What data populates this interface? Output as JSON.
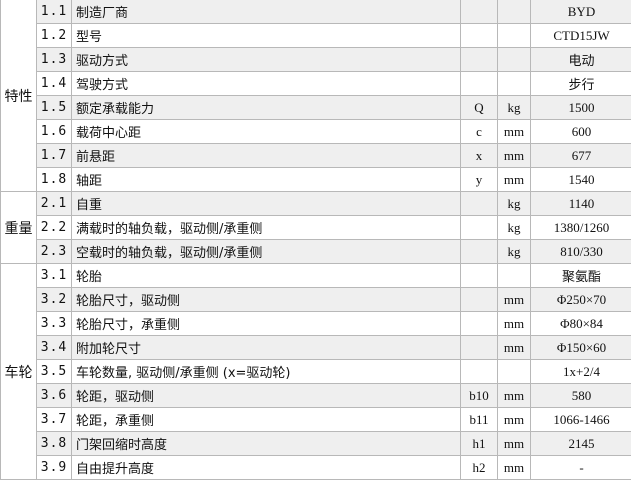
{
  "groups": [
    {
      "label": "特性",
      "rows": [
        {
          "num": "1.1",
          "name": "制造厂商",
          "sym": "",
          "unit": "",
          "val": "BYD"
        },
        {
          "num": "1.2",
          "name": "型号",
          "sym": "",
          "unit": "",
          "val": "CTD15JW"
        },
        {
          "num": "1.3",
          "name": "驱动方式",
          "sym": "",
          "unit": "",
          "val": "电动"
        },
        {
          "num": "1.4",
          "name": "驾驶方式",
          "sym": "",
          "unit": "",
          "val": "步行"
        },
        {
          "num": "1.5",
          "name": "额定承载能力",
          "sym": "Q",
          "unit": "kg",
          "val": "1500"
        },
        {
          "num": "1.6",
          "name": "载荷中心距",
          "sym": "c",
          "unit": "mm",
          "val": "600"
        },
        {
          "num": "1.7",
          "name": "前悬距",
          "sym": "x",
          "unit": "mm",
          "val": "677"
        },
        {
          "num": "1.8",
          "name": "轴距",
          "sym": "y",
          "unit": "mm",
          "val": "1540"
        }
      ]
    },
    {
      "label": "重量",
      "rows": [
        {
          "num": "2.1",
          "name": "自重",
          "sym": "",
          "unit": "kg",
          "val": "1140"
        },
        {
          "num": "2.2",
          "name": "满载时的轴负载，驱动侧/承重侧",
          "sym": "",
          "unit": "kg",
          "val": "1380/1260"
        },
        {
          "num": "2.3",
          "name": "空载时的轴负载，驱动侧/承重侧",
          "sym": "",
          "unit": "kg",
          "val": "810/330"
        }
      ]
    },
    {
      "label": "车轮",
      "rows": [
        {
          "num": "3.1",
          "name": "轮胎",
          "sym": "",
          "unit": "",
          "val": "聚氨酯"
        },
        {
          "num": "3.2",
          "name": "轮胎尺寸，驱动侧",
          "sym": "",
          "unit": "mm",
          "val": "Φ250×70"
        },
        {
          "num": "3.3",
          "name": "轮胎尺寸，承重侧",
          "sym": "",
          "unit": "mm",
          "val": "Φ80×84"
        },
        {
          "num": "3.4",
          "name": "附加轮尺寸",
          "sym": "",
          "unit": "mm",
          "val": "Φ150×60"
        },
        {
          "num": "3.5",
          "name": "车轮数量, 驱动侧/承重侧 (x=驱动轮)",
          "sym": "",
          "unit": "",
          "val": "1x+2/4"
        },
        {
          "num": "3.6",
          "name": "轮距，驱动侧",
          "sym": "b10",
          "unit": "mm",
          "val": "580"
        },
        {
          "num": "3.7",
          "name": "轮距，承重侧",
          "sym": "b11",
          "unit": "mm",
          "val": "1066-1466"
        },
        {
          "num": "3.8",
          "name": "门架回缩时高度",
          "sym": "h1",
          "unit": "mm",
          "val": "2145"
        },
        {
          "num": "3.9",
          "name": "自由提升高度",
          "sym": "h2",
          "unit": "mm",
          "val": "-"
        }
      ]
    }
  ]
}
